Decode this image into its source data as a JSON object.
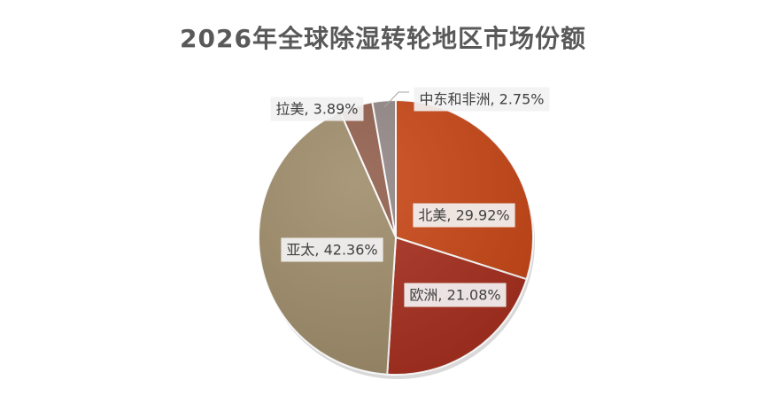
{
  "chart_data": {
    "type": "pie",
    "title": "2026年全球除湿转轮地区市场份额",
    "slices": [
      {
        "label": "北美",
        "value": 29.92,
        "display": "北美, 29.92%",
        "color": "#c94818"
      },
      {
        "label": "欧洲",
        "value": 21.08,
        "display": "欧洲, 21.08%",
        "color": "#a83020"
      },
      {
        "label": "亚太",
        "value": 42.36,
        "display": "亚太, 42.36%",
        "color": "#a08e6c"
      },
      {
        "label": "拉美",
        "value": 3.89,
        "display": "拉美, 3.89%",
        "color": "#92604e"
      },
      {
        "label": "中东和非洲",
        "value": 2.75,
        "display": "中东和非洲, 2.75%",
        "color": "#948888"
      }
    ],
    "start_angle": "12 o'clock",
    "direction": "clockwise",
    "legend": "none",
    "data_labels": "category, percent"
  }
}
